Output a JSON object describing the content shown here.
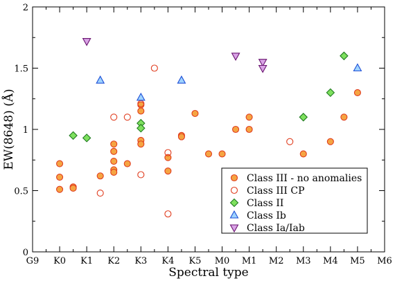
{
  "chart_data": {
    "type": "scatter",
    "xlabel": "Spectral type",
    "ylabel": "EW(8648) (Å)",
    "x_categories": [
      "G9",
      "K0",
      "K1",
      "K2",
      "K3",
      "K4",
      "K5",
      "M0",
      "M1",
      "M2",
      "M3",
      "M4",
      "M5",
      "M6"
    ],
    "x_range": [
      0,
      13
    ],
    "ylim": [
      0,
      2
    ],
    "y_ticks": [
      0,
      0.5,
      1,
      1.5,
      2
    ],
    "y_tick_labels": [
      "0",
      "0.5",
      "1",
      "1.5",
      "2"
    ],
    "legend_position": "bottom-right",
    "series": [
      {
        "name": "Class III - no anomalies",
        "marker": "circle",
        "fill": "#f5a442",
        "stroke": "#e03c1e",
        "points": [
          [
            1.0,
            0.72
          ],
          [
            1.0,
            0.61
          ],
          [
            1.0,
            0.51
          ],
          [
            1.5,
            0.53
          ],
          [
            1.5,
            0.52
          ],
          [
            2.5,
            0.62
          ],
          [
            3.0,
            0.88
          ],
          [
            3.0,
            0.82
          ],
          [
            3.0,
            0.74
          ],
          [
            3.0,
            0.67
          ],
          [
            3.0,
            0.65
          ],
          [
            3.5,
            0.72
          ],
          [
            4.0,
            1.2
          ],
          [
            4.0,
            1.15
          ],
          [
            4.0,
            0.91
          ],
          [
            4.0,
            0.88
          ],
          [
            5.0,
            0.77
          ],
          [
            5.0,
            0.66
          ],
          [
            5.5,
            0.95
          ],
          [
            5.5,
            0.94
          ],
          [
            6.0,
            1.13
          ],
          [
            6.5,
            0.8
          ],
          [
            7.0,
            0.8
          ],
          [
            7.5,
            1.0
          ],
          [
            8.0,
            1.1
          ],
          [
            8.0,
            1.0
          ],
          [
            10.0,
            0.8
          ],
          [
            11.0,
            0.9
          ],
          [
            11.5,
            1.1
          ],
          [
            12.0,
            1.3
          ]
        ]
      },
      {
        "name": "Class III CP",
        "marker": "circle-open",
        "fill": "none",
        "stroke": "#e03c1e",
        "points": [
          [
            2.5,
            0.48
          ],
          [
            3.0,
            1.1
          ],
          [
            3.5,
            1.1
          ],
          [
            4.0,
            1.21
          ],
          [
            4.0,
            0.63
          ],
          [
            4.5,
            1.5
          ],
          [
            5.0,
            0.81
          ],
          [
            5.0,
            0.31
          ],
          [
            9.5,
            0.9
          ]
        ]
      },
      {
        "name": "Class II",
        "marker": "diamond",
        "fill": "#7ee05e",
        "stroke": "#1f7a1f",
        "points": [
          [
            1.5,
            0.95
          ],
          [
            2.0,
            0.93
          ],
          [
            4.0,
            1.05
          ],
          [
            4.0,
            1.01
          ],
          [
            10.0,
            1.1
          ],
          [
            11.0,
            1.3
          ],
          [
            11.5,
            1.6
          ]
        ]
      },
      {
        "name": "Class Ib",
        "marker": "triangle-up",
        "fill": "#9fd3ff",
        "stroke": "#1e4fd6",
        "points": [
          [
            2.5,
            1.4
          ],
          [
            4.0,
            1.26
          ],
          [
            5.5,
            1.4
          ],
          [
            12.0,
            1.5
          ]
        ]
      },
      {
        "name": "Class Ia/Iab",
        "marker": "triangle-down",
        "fill": "#d9a3e6",
        "stroke": "#6a1470",
        "points": [
          [
            2.0,
            1.72
          ],
          [
            7.5,
            1.6
          ],
          [
            8.5,
            1.55
          ],
          [
            8.5,
            1.5
          ]
        ]
      }
    ]
  }
}
